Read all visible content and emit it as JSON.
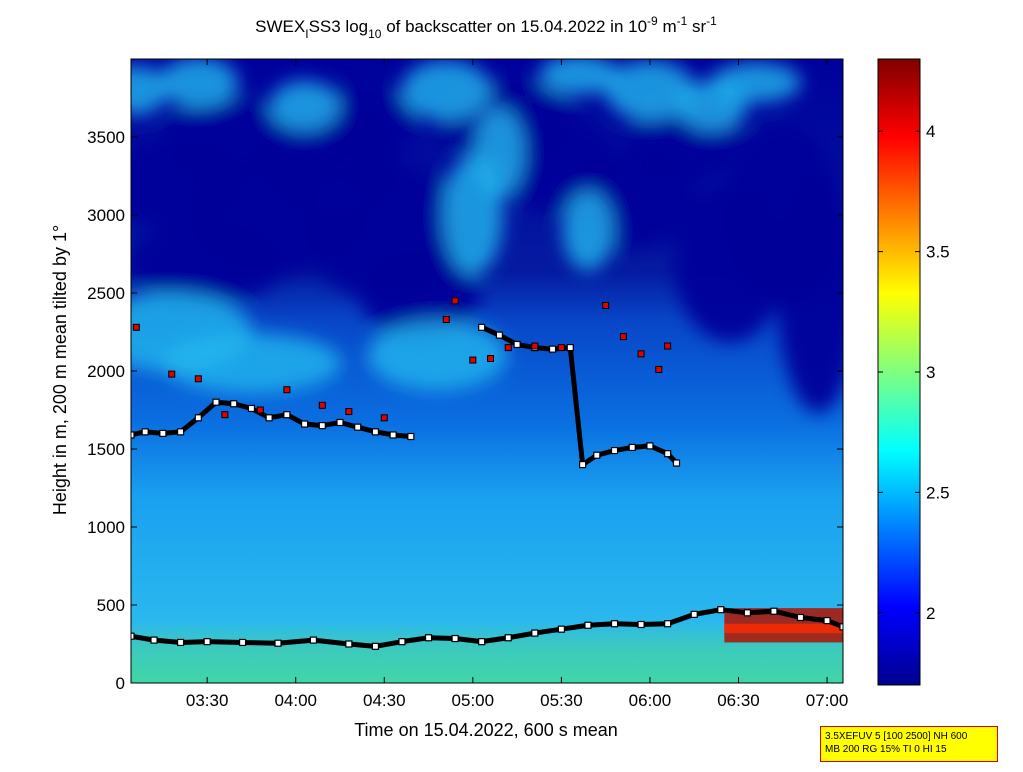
{
  "chart_data": {
    "type": "heatmap",
    "title": {
      "prefix": "SWEX",
      "sub_i": "I",
      "name": "SS3 log",
      "sub_10": "10",
      "middle": " of backscatter on 15.04.2022 in 10",
      "exp1": "-9",
      "unit1": " m",
      "exp2": "-1",
      "unit2": " sr",
      "exp3": "-1"
    },
    "xlabel": "Time on 15.04.2022, 600 s mean",
    "ylabel": "Height in m, 200 m mean tilted by 1°",
    "x_ticks": [
      "03:30",
      "04:00",
      "04:30",
      "05:00",
      "05:30",
      "06:00",
      "06:30",
      "07:00"
    ],
    "x_tick_hours": [
      3.5,
      4.0,
      4.5,
      5.0,
      5.5,
      6.0,
      6.5,
      7.0
    ],
    "xlim_hours": [
      3.07,
      7.09
    ],
    "y_ticks": [
      "0",
      "500",
      "1000",
      "1500",
      "2000",
      "2500",
      "3000",
      "3500"
    ],
    "y_tick_values": [
      0,
      500,
      1000,
      1500,
      2000,
      2500,
      3000,
      3500
    ],
    "ylim": [
      0,
      4000
    ],
    "colorbar": {
      "ticks": [
        "2",
        "2.5",
        "3",
        "3.5",
        "4"
      ],
      "tick_values": [
        2,
        2.5,
        3,
        3.5,
        4
      ],
      "range": [
        1.7,
        4.3
      ],
      "colormap": "jet"
    },
    "series": [
      {
        "marker": "black-square",
        "x": [
          3.07,
          3.2,
          3.35,
          3.5,
          3.7,
          3.9,
          4.1,
          4.3,
          4.45,
          4.6,
          4.75,
          4.9,
          5.05,
          5.2,
          5.35,
          5.5,
          5.65,
          5.8,
          5.95,
          6.1,
          6.25,
          6.4,
          6.55,
          6.7,
          6.85,
          7.0,
          7.09
        ],
        "y": [
          300,
          275,
          260,
          265,
          260,
          255,
          275,
          250,
          235,
          265,
          290,
          285,
          265,
          290,
          320,
          345,
          370,
          380,
          375,
          380,
          440,
          470,
          450,
          460,
          420,
          400,
          360
        ]
      },
      {
        "marker": "black-square",
        "x": [
          3.07,
          3.15,
          3.25,
          3.35,
          3.45,
          3.55,
          3.65,
          3.75,
          3.85,
          3.95,
          4.05,
          4.15,
          4.25,
          4.35,
          4.45,
          4.55,
          4.65
        ],
        "y": [
          1590,
          1610,
          1600,
          1610,
          1700,
          1800,
          1790,
          1760,
          1700,
          1720,
          1660,
          1650,
          1670,
          1640,
          1610,
          1590,
          1580
        ]
      },
      {
        "marker": "black-square",
        "x": [
          5.05,
          5.15,
          5.25,
          5.35,
          5.45,
          5.55,
          5.62,
          5.7,
          5.8,
          5.9,
          6.0,
          6.1,
          6.15
        ],
        "y": [
          2280,
          2230,
          2170,
          2150,
          2140,
          2150,
          1400,
          1460,
          1490,
          1510,
          1520,
          1470,
          1410
        ]
      }
    ],
    "red_points": {
      "x": [
        3.1,
        3.3,
        3.45,
        3.6,
        3.8,
        3.95,
        4.15,
        4.3,
        4.5,
        4.85,
        4.9,
        5.0,
        5.1,
        5.2,
        5.35,
        5.5,
        5.75,
        5.85,
        5.95,
        6.05,
        6.1
      ],
      "y": [
        2280,
        1980,
        1950,
        1720,
        1750,
        1880,
        1780,
        1740,
        1700,
        2330,
        2450,
        2070,
        2080,
        2150,
        2160,
        2150,
        2420,
        2220,
        2110,
        2010,
        2160
      ]
    }
  },
  "infobox": {
    "line1": "3.5XEFUV 5 [100 2500] NH 600",
    "line2": "MB 200 RG 15% TI 0 HI 15"
  }
}
